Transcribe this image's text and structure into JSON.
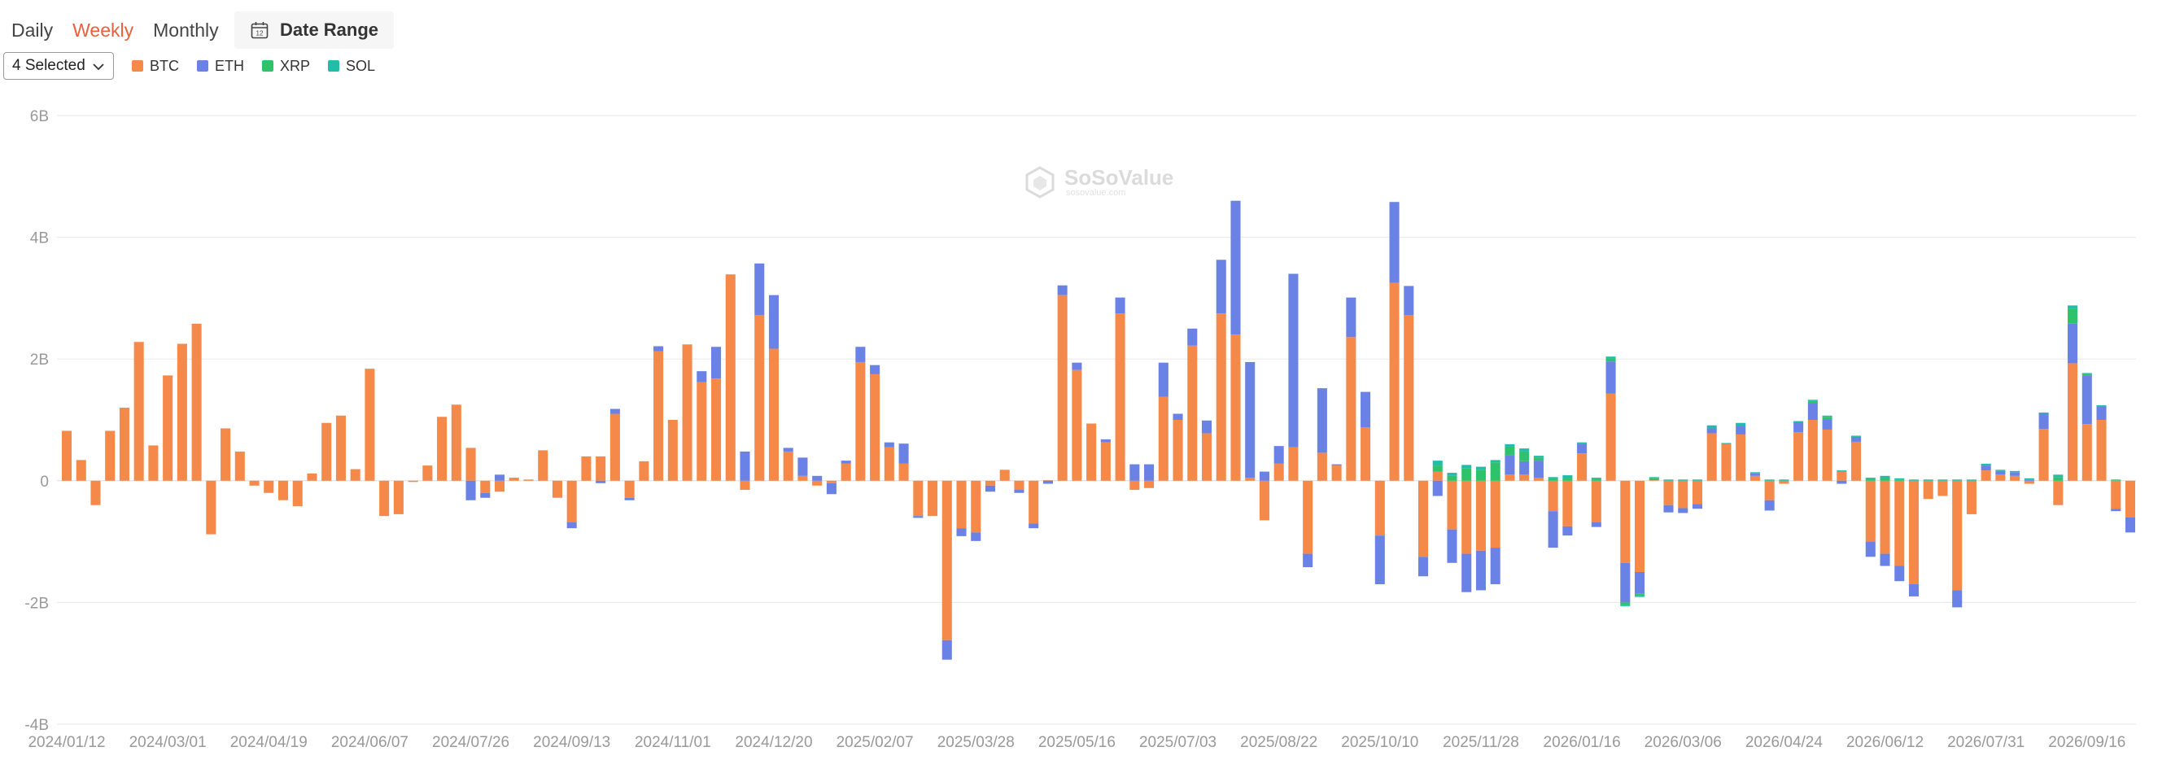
{
  "tabs": [
    {
      "label": "Daily",
      "active": false
    },
    {
      "label": "Weekly",
      "active": true
    },
    {
      "label": "Monthly",
      "active": false
    }
  ],
  "date_range": {
    "label": "Date Range",
    "icon": "calendar-icon",
    "icon_text": "12"
  },
  "selector": {
    "label": "4 Selected",
    "icon": "chevron-down-icon"
  },
  "watermark": {
    "name": "SoSoValue",
    "url": "sosovalue.com"
  },
  "colors": {
    "BTC": "#f5894a",
    "ETH": "#6a82e5",
    "XRP": "#2ec26a",
    "SOL": "#22bca9",
    "accent": "#e8603c"
  },
  "chart_data": {
    "type": "bar",
    "stacked": true,
    "title": "",
    "xlabel": "",
    "ylabel": "",
    "ylim": [
      -4,
      6
    ],
    "yunit": "B",
    "yticks": [
      -4,
      -2,
      0,
      2,
      4,
      6
    ],
    "ytick_labels": [
      "-4B",
      "-2B",
      "0",
      "2B",
      "4B",
      "6B"
    ],
    "grid": true,
    "legend": "top-left",
    "x_tick_labels": [
      "2024/01/12",
      "2024/03/01",
      "2024/04/19",
      "2024/06/07",
      "2024/07/26",
      "2024/09/13",
      "2024/11/01",
      "2024/12/20",
      "2025/02/07",
      "2025/03/28",
      "2025/05/16",
      "2025/07/03",
      "2025/08/22",
      "2025/10/10",
      "2025/11/28",
      "2026/01/16",
      "2026/03/06",
      "2026/04/24",
      "2026/06/12",
      "2026/07/31",
      "2026/09/16"
    ],
    "x_tick_index": [
      0,
      7,
      14,
      21,
      28,
      35,
      42,
      49,
      56,
      63,
      70,
      77,
      84,
      91,
      98,
      105,
      112,
      119,
      126,
      133,
      140
    ],
    "series": [
      {
        "name": "BTC",
        "values": [
          0.82,
          0.34,
          -0.4,
          0.82,
          1.2,
          2.28,
          0.58,
          1.73,
          2.25,
          2.58,
          -0.88,
          0.86,
          0.48,
          -0.08,
          -0.2,
          -0.32,
          -0.42,
          0.12,
          0.95,
          1.07,
          0.19,
          1.84,
          -0.58,
          -0.55,
          -0.02,
          0.25,
          1.05,
          1.25,
          0.54,
          -0.2,
          -0.18,
          0.05,
          0.02,
          0.5,
          -0.28,
          -0.68,
          0.4,
          0.4,
          1.1,
          -0.28,
          0.32,
          2.13,
          1.0,
          2.24,
          1.62,
          1.68,
          3.39,
          -0.15,
          2.72,
          2.17,
          0.48,
          0.08,
          -0.08,
          -0.04,
          0.28,
          1.95,
          1.75,
          0.55,
          0.28,
          -0.58,
          -0.58,
          -2.62,
          -0.78,
          -0.85,
          -0.08,
          0.18,
          -0.15,
          -0.7,
          0.01,
          3.05,
          1.82,
          0.94,
          0.63,
          2.75,
          -0.15,
          -0.12,
          1.38,
          1.0,
          2.22,
          0.78,
          2.75,
          2.4,
          0.05,
          -0.65,
          0.28,
          0.55,
          -1.2,
          0.46,
          0.25,
          2.36,
          0.88,
          -0.9,
          3.25,
          2.72,
          -1.25,
          0.15,
          -0.8,
          -1.2,
          -1.15,
          -1.1,
          0.1,
          0.1,
          0.05,
          -0.5,
          -0.75,
          0.45,
          -0.68,
          1.43,
          -1.35,
          -1.5,
          0.01,
          -0.4,
          -0.45,
          -0.38,
          0.78,
          0.6,
          0.76,
          0.08,
          -0.32,
          -0.05,
          0.8,
          1.0,
          0.84,
          0.15,
          0.64,
          -1.0,
          -1.2,
          -1.4,
          -1.7,
          -0.3,
          -0.25,
          -1.8,
          -0.55,
          0.17,
          0.1,
          0.08,
          -0.05,
          0.85,
          -0.4,
          1.93,
          0.93,
          1.0,
          -0.46,
          -0.6
        ],
        "values_ETH": [],
        "note": ""
      },
      {
        "name": "ETH",
        "values": [
          0,
          0,
          0,
          0,
          0,
          0,
          0,
          0,
          0,
          0,
          0,
          0,
          0,
          0,
          0,
          0,
          0,
          0,
          0,
          0,
          0,
          0,
          0,
          0,
          0,
          0,
          0,
          0,
          -0.32,
          -0.08,
          0.1,
          0,
          0,
          0,
          0,
          -0.1,
          0,
          -0.04,
          0.08,
          -0.04,
          0,
          0.08,
          0,
          0,
          0.18,
          0.52,
          0,
          0.48,
          0.85,
          0.88,
          0.06,
          0.3,
          0.08,
          -0.18,
          0.05,
          0.25,
          0.15,
          0.08,
          0.33,
          -0.03,
          0,
          -0.32,
          -0.13,
          -0.14,
          -0.1,
          0,
          -0.05,
          -0.08,
          -0.05,
          0.16,
          0.12,
          0,
          0.05,
          0.26,
          0.27,
          0.27,
          0.56,
          0.1,
          0.28,
          0.21,
          0.88,
          2.2,
          1.9,
          0.15,
          0.29,
          2.85,
          -0.22,
          1.06,
          0.02,
          0.65,
          0.58,
          -0.8,
          1.33,
          0.48,
          -0.32,
          -0.25,
          -0.55,
          -0.63,
          -0.65,
          -0.6,
          0.32,
          0.22,
          0.28,
          -0.6,
          -0.15,
          0.15,
          -0.08,
          0.53,
          -0.65,
          -0.35,
          0,
          -0.12,
          -0.08,
          -0.08,
          0.08,
          0,
          0.14,
          0.04,
          -0.17,
          0,
          0.16,
          0.28,
          0.16,
          -0.05,
          0.08,
          -0.25,
          -0.2,
          -0.25,
          -0.2,
          0,
          0,
          -0.28,
          0,
          0.08,
          0.06,
          0.06,
          0.02,
          0.25,
          0,
          0.65,
          0.8,
          0.22,
          -0.04,
          -0.25
        ]
      },
      {
        "name": "XRP",
        "values": [
          0,
          0,
          0,
          0,
          0,
          0,
          0,
          0,
          0,
          0,
          0,
          0,
          0,
          0,
          0,
          0,
          0,
          0,
          0,
          0,
          0,
          0,
          0,
          0,
          0,
          0,
          0,
          0,
          0,
          0,
          0,
          0,
          0,
          0,
          0,
          0,
          0,
          0,
          0,
          0,
          0,
          0,
          0,
          0,
          0,
          0,
          0,
          0,
          0,
          0,
          0,
          0,
          0,
          0,
          0,
          0,
          0,
          0,
          0,
          0,
          0,
          0,
          0,
          0,
          0,
          0,
          0,
          0,
          0,
          0,
          0,
          0,
          0,
          0,
          0,
          0,
          0,
          0,
          0,
          0,
          0,
          0,
          0,
          0,
          0,
          0,
          0,
          0,
          0,
          0,
          0,
          0,
          0,
          0,
          0,
          0.1,
          0.08,
          0.2,
          0.18,
          0.3,
          0.14,
          0.16,
          0.05,
          0.03,
          0.05,
          0,
          0.03,
          0.05,
          -0.04,
          -0.04,
          0.03,
          0,
          0,
          0,
          0,
          0,
          0,
          0,
          0,
          0,
          0,
          0.03,
          0.05,
          0,
          0,
          0.03,
          0.05,
          0.02,
          0,
          0,
          0,
          0,
          0,
          0,
          0,
          0,
          0,
          0,
          0.06,
          0.25,
          0.02,
          0,
          0.01
        ]
      },
      {
        "name": "SOL",
        "values": [
          0,
          0,
          0,
          0,
          0,
          0,
          0,
          0,
          0,
          0,
          0,
          0,
          0,
          0,
          0,
          0,
          0,
          0,
          0,
          0,
          0,
          0,
          0,
          0,
          0,
          0,
          0,
          0,
          0,
          0,
          0,
          0,
          0,
          0,
          0,
          0,
          0,
          0,
          0,
          0,
          0,
          0,
          0,
          0,
          0,
          0,
          0,
          0,
          0,
          0,
          0,
          0,
          0,
          0,
          0,
          0,
          0,
          0,
          0,
          0,
          0,
          0,
          0,
          0,
          0,
          0,
          0,
          0,
          0,
          0,
          0,
          0,
          0,
          0,
          0,
          0,
          0,
          0,
          0,
          0,
          0,
          0,
          0,
          0,
          0,
          0,
          0,
          0,
          0,
          0,
          0,
          0,
          0,
          0,
          0,
          0.08,
          0.05,
          0.06,
          0.05,
          0.04,
          0.04,
          0.05,
          0.03,
          0.03,
          0.04,
          0.03,
          0.02,
          0.03,
          -0.02,
          -0.02,
          0.02,
          0.02,
          0.02,
          0.02,
          0.05,
          0.02,
          0.05,
          0.02,
          0.02,
          0.02,
          0.02,
          0.02,
          0.02,
          0.02,
          0.02,
          0.02,
          0.03,
          0.02,
          0.02,
          0.02,
          0.02,
          0.02,
          0.02,
          0.03,
          0.02,
          0.02,
          0.02,
          0.02,
          0.04,
          0.05,
          0.02,
          0.02,
          0.01
        ]
      }
    ]
  }
}
